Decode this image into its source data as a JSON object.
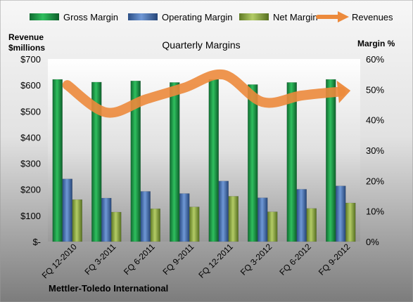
{
  "chart_data": {
    "type": "bar",
    "title": "Quarterly Margins",
    "categories": [
      "FQ 12-2010",
      "FQ 3-2011",
      "FQ 6-2011",
      "FQ 9-2011",
      "FQ 12-2011",
      "FQ 3-2012",
      "FQ 6-2012",
      "FQ 9-2012"
    ],
    "series": [
      {
        "name": "Gross Margin",
        "type": "bar",
        "axis": "right",
        "color": "#1e9a4a",
        "values": [
          53.3,
          52.4,
          52.8,
          52.3,
          53.3,
          51.6,
          52.3,
          53.3
        ]
      },
      {
        "name": "Operating Margin",
        "type": "bar",
        "axis": "right",
        "color": "#4f79b8",
        "values": [
          20.6,
          14.3,
          16.5,
          15.8,
          19.9,
          14.4,
          17.2,
          18.3
        ]
      },
      {
        "name": "Net Margin",
        "type": "bar",
        "axis": "right",
        "color": "#8fae4a",
        "values": [
          13.8,
          9.7,
          10.8,
          11.4,
          14.9,
          9.8,
          10.9,
          12.7
        ]
      },
      {
        "name": "Revenues",
        "type": "line",
        "axis": "left",
        "color": "#ec8a3c",
        "values": [
          600,
          495,
          545,
          590,
          640,
          535,
          560,
          575
        ]
      }
    ],
    "y_left": {
      "label_line1": "Revenue",
      "label_line2": "$millions",
      "range": [
        0,
        700
      ],
      "ticks": [
        "$-",
        "$100",
        "$200",
        "$300",
        "$400",
        "$500",
        "$600",
        "$700"
      ]
    },
    "y_right": {
      "label": "Margin %",
      "range": [
        0,
        60
      ],
      "ticks": [
        "0%",
        "10%",
        "20%",
        "30%",
        "40%",
        "50%",
        "60%"
      ]
    },
    "grid": false,
    "legend_placement": "top",
    "source_label": "Mettler-Toledo International"
  }
}
